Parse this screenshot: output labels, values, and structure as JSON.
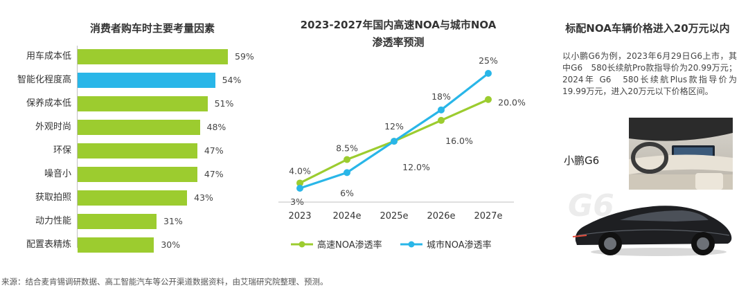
{
  "chart_data": [
    {
      "type": "bar",
      "orientation": "horizontal",
      "title": "消费者购车时主要考量因素",
      "categories": [
        "用车成本低",
        "智能化程度高",
        "保养成本低",
        "外观时尚",
        "环保",
        "噪音小",
        "获取拍照",
        "动力性能",
        "配置表精炼"
      ],
      "values": [
        59,
        54,
        51,
        48,
        47,
        47,
        43,
        31,
        30
      ],
      "value_labels": [
        "59%",
        "54%",
        "51%",
        "48%",
        "47%",
        "47%",
        "43%",
        "31%",
        "30%"
      ],
      "highlight_index": 1,
      "colors": {
        "bar": "#9ccc2f",
        "highlight": "#29b6e8"
      }
    },
    {
      "type": "line",
      "title": "2023-2027年国内高速NOA与城市NOA渗透率预测",
      "title_lines": [
        "2023-2027年国内高速NOA与城市NOA",
        "渗透率预测"
      ],
      "categories": [
        "2023",
        "2024e",
        "2025e",
        "2026e",
        "2027e"
      ],
      "ylim": [
        0,
        28
      ],
      "legend_position": "bottom",
      "series": [
        {
          "name": "高速NOA渗透率",
          "values": [
            4.0,
            8.5,
            12.0,
            16.0,
            20.0
          ],
          "labels": [
            "4.0%",
            "8.5%",
            "12.0%",
            "16.0%",
            "20.0%"
          ],
          "color": "#9ccc2f"
        },
        {
          "name": "城市NOA渗透率",
          "values": [
            3,
            6,
            12,
            18,
            25
          ],
          "labels": [
            "3%",
            "6%",
            "12%",
            "18%",
            "25%"
          ],
          "color": "#29b6e8"
        }
      ]
    }
  ],
  "right": {
    "title": "标配NOA车辆价格进入20万元以内",
    "description": "以小鹏G6为例，2023年6月29日G6上市，其中G6　580长续航Pro款指导价为20.99万元；2024年 G6　580长续航Plus款指导价为19.99万元，进入20万元以下价格区间。",
    "car_name": "小鹏G6",
    "watermark_text": "G6"
  },
  "footer": "来源：结合麦肯锡调研数据、高工智能汽车等公开渠道数据资料，由艾瑞研究院整理、预测。"
}
